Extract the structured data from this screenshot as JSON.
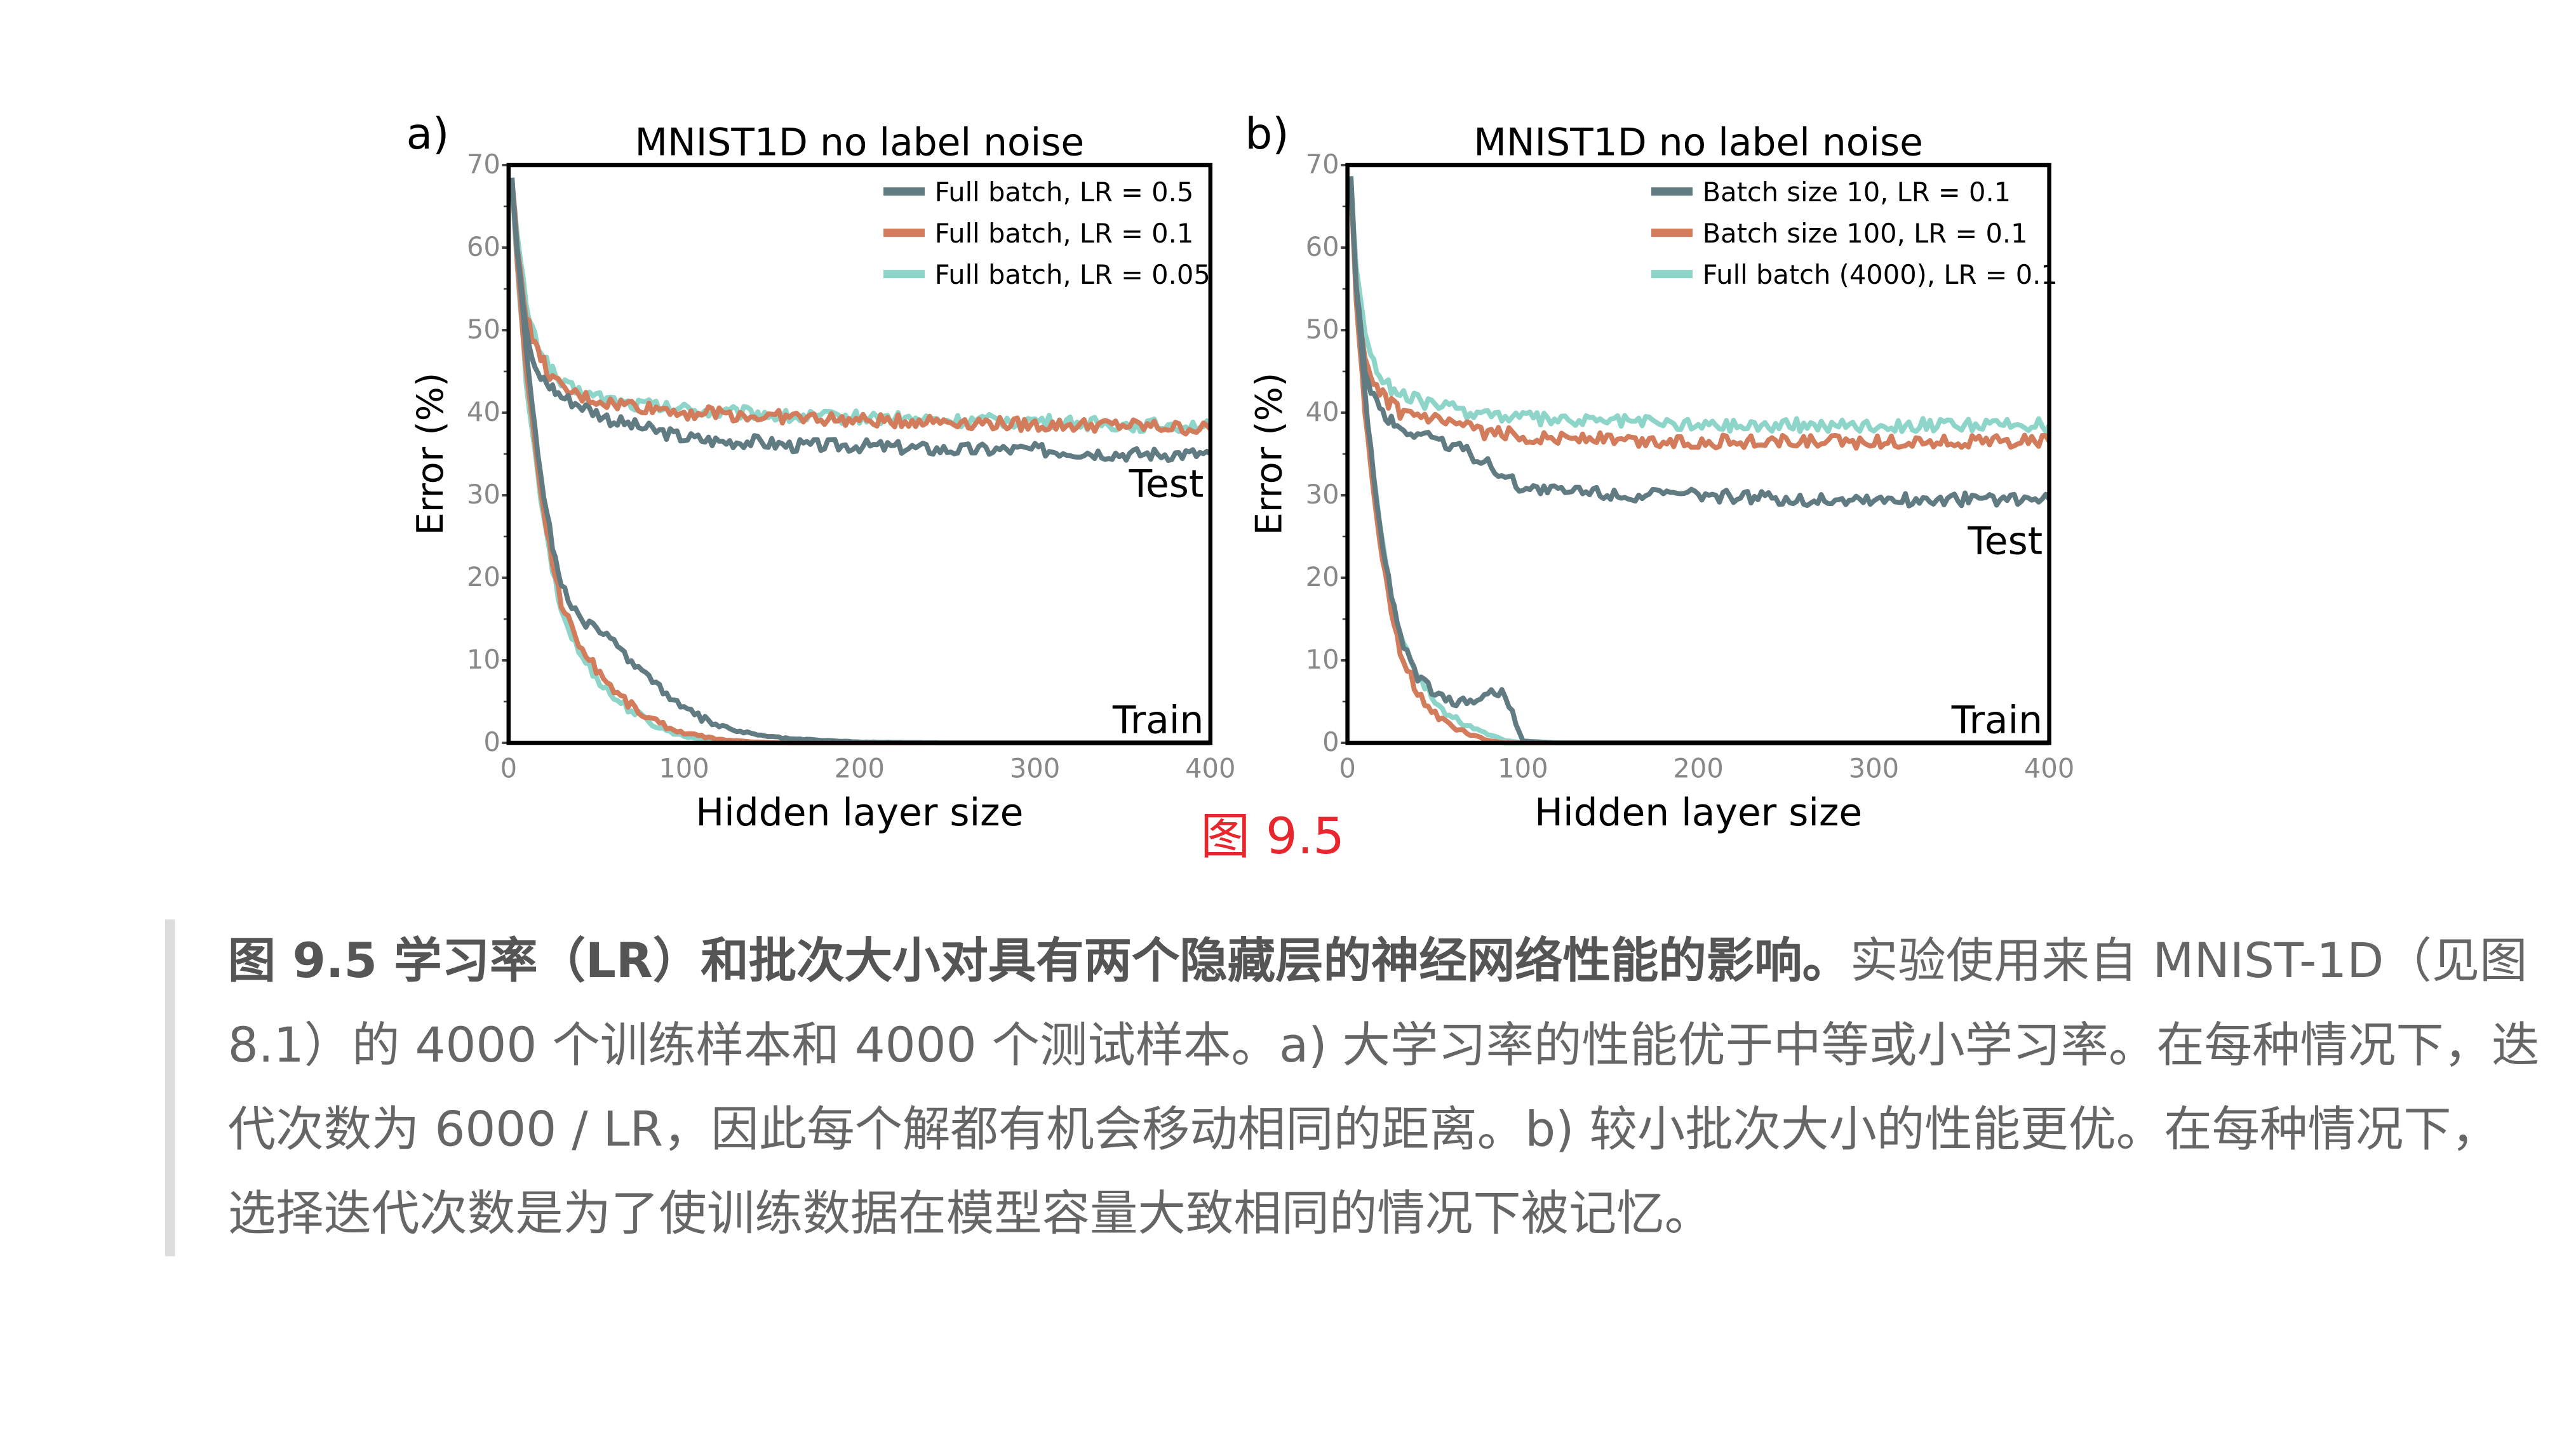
{
  "figure_label": "图 9.5",
  "caption": {
    "bold": "图 9.5 学习率（LR）和批次大小对具有两个隐藏层的神经网络性能的影响。",
    "text": "实验使用来自 MNIST-1D（见图 8.1）的 4000 个训练样本和 4000 个测试样本。a) 大学习率的性能优于中等或小学习率。在每种情况下，迭代次数为 6000 / LR，因此每个解都有机会移动相同的距离。b) 较小批次大小的性能更优。在每种情况下，选择迭代次数是为了使训练数据在模型容量大致相同的情况下被记忆。"
  },
  "chart_data": [
    {
      "type": "line",
      "panel": "a)",
      "title": "MNIST1D no label noise",
      "xlabel": "Hidden layer size",
      "ylabel": "Error (%)",
      "xlim": [
        0,
        400
      ],
      "ylim": [
        0,
        70
      ],
      "xticks": [
        "0",
        "100",
        "200",
        "300",
        "400"
      ],
      "yticks": [
        "0",
        "10",
        "20",
        "30",
        "40",
        "50",
        "60",
        "70"
      ],
      "annotations": [
        "Test",
        "Train"
      ],
      "legend_position": "top-right",
      "x": [
        2,
        5,
        10,
        15,
        20,
        25,
        30,
        40,
        50,
        60,
        70,
        80,
        90,
        100,
        120,
        140,
        160,
        200,
        250,
        300,
        350,
        400
      ],
      "series": [
        {
          "name": "Full batch, LR = 0.5",
          "color": "#617b82",
          "test": [
            68,
            60,
            50,
            45,
            44,
            43,
            42,
            41,
            40,
            39,
            38.5,
            38,
            37.5,
            37,
            36.5,
            36.5,
            36,
            36,
            35.5,
            35.5,
            35,
            35
          ],
          "train": [
            68,
            60,
            48,
            38,
            30,
            24,
            19,
            15,
            14,
            12,
            10,
            8,
            6,
            4,
            2,
            1,
            0.5,
            0.1,
            0,
            0,
            0,
            0
          ]
        },
        {
          "name": "Full batch, LR = 0.1",
          "color": "#d27c5c",
          "test": [
            68,
            60,
            52,
            48,
            46,
            44,
            43,
            42,
            41.5,
            41,
            41,
            40.5,
            40.5,
            40,
            40,
            39.5,
            39.5,
            39,
            39,
            38.5,
            38.5,
            38
          ],
          "train": [
            68,
            58,
            45,
            36,
            28,
            22,
            17,
            12,
            9,
            6.5,
            4.5,
            3,
            2,
            1.2,
            0.4,
            0.1,
            0,
            0,
            0,
            0,
            0,
            0
          ]
        },
        {
          "name": "Full batch, LR = 0.05",
          "color": "#8dd4c9",
          "test": [
            68,
            61,
            53,
            49,
            47,
            45,
            43.5,
            42.5,
            42,
            41.5,
            41,
            41,
            40.5,
            40.5,
            40,
            40,
            39.5,
            39.5,
            39,
            39,
            38.5,
            38.5
          ],
          "train": [
            68,
            57,
            44,
            35,
            27,
            21,
            16,
            11,
            8,
            5.5,
            4,
            2.5,
            1.5,
            0.8,
            0.2,
            0,
            0,
            0,
            0,
            0,
            0,
            0
          ]
        }
      ]
    },
    {
      "type": "line",
      "panel": "b)",
      "title": "MNIST1D no label noise",
      "xlabel": "Hidden layer size",
      "ylabel": "Error (%)",
      "xlim": [
        0,
        400
      ],
      "ylim": [
        0,
        70
      ],
      "xticks": [
        "0",
        "100",
        "200",
        "300",
        "400"
      ],
      "yticks": [
        "0",
        "10",
        "20",
        "30",
        "40",
        "50",
        "60",
        "70"
      ],
      "annotations": [
        "Test",
        "Train"
      ],
      "legend_position": "top-right",
      "x": [
        2,
        5,
        10,
        15,
        20,
        25,
        30,
        40,
        50,
        60,
        70,
        80,
        90,
        100,
        120,
        140,
        160,
        200,
        250,
        300,
        350,
        400
      ],
      "series": [
        {
          "name": "Batch size 10, LR = 0.1",
          "color": "#617b82",
          "test": [
            68,
            55,
            45,
            42,
            40,
            39,
            38,
            37.5,
            37,
            36,
            35,
            34,
            32,
            31,
            30.5,
            30.5,
            30,
            30,
            29.5,
            29.5,
            29.5,
            29.5
          ],
          "train": [
            68,
            55,
            42,
            32,
            24,
            18,
            13,
            8,
            6,
            5,
            5,
            6,
            6,
            0.2,
            0,
            0,
            0,
            0,
            0,
            0,
            0,
            0
          ]
        },
        {
          "name": "Batch size 100, LR = 0.1",
          "color": "#d27c5c",
          "test": [
            68,
            55,
            46,
            43,
            42,
            41,
            40,
            39.5,
            39,
            38.5,
            38,
            37.5,
            37.5,
            37,
            37,
            37,
            36.5,
            36.5,
            36.5,
            36.5,
            36.5,
            36.5
          ],
          "train": [
            68,
            54,
            40,
            30,
            22,
            16,
            11,
            6,
            3.5,
            2,
            1,
            0.3,
            0,
            0,
            0,
            0,
            0,
            0,
            0,
            0,
            0,
            0
          ]
        },
        {
          "name": "Full batch (4000), LR = 0.1",
          "color": "#8dd4c9",
          "test": [
            68,
            58,
            50,
            46,
            44,
            43,
            42,
            41.5,
            41,
            40.5,
            40,
            40,
            39.5,
            39.5,
            39,
            39,
            39,
            38.5,
            38.5,
            38.5,
            38.5,
            38.5
          ],
          "train": [
            68,
            56,
            42,
            32,
            24,
            18,
            13,
            8,
            5,
            3,
            2,
            1,
            0.3,
            0,
            0,
            0,
            0,
            0,
            0,
            0,
            0,
            0
          ]
        }
      ]
    }
  ]
}
